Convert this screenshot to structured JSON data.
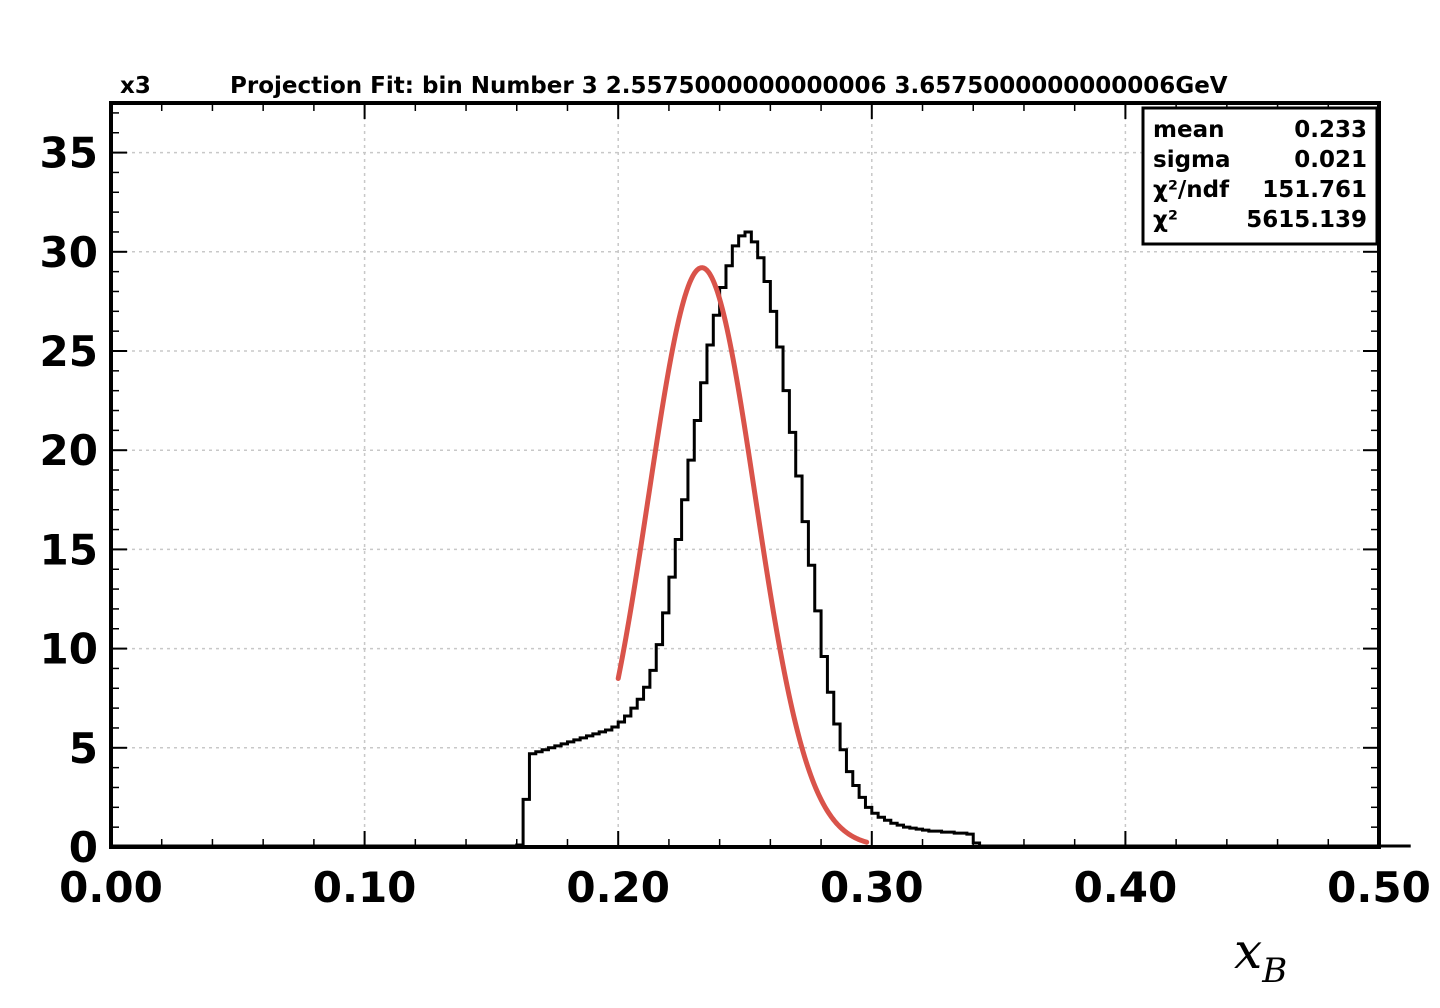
{
  "chart_data": {
    "type": "histogram",
    "corner_label": "x3",
    "title": "Projection Fit: bin Number 3 2.5575000000000006 3.6575000000000006GeV",
    "xlabel": "x",
    "xlabel_subscript": "B",
    "ylabel": "",
    "xlim": [
      0.0,
      0.5
    ],
    "ylim": [
      0,
      37.5
    ],
    "x_ticks": [
      0.0,
      0.1,
      0.2,
      0.3,
      0.4,
      0.5
    ],
    "x_tick_labels": [
      "0.00",
      "0.10",
      "0.20",
      "0.30",
      "0.40",
      "0.50"
    ],
    "y_ticks": [
      0,
      5,
      10,
      15,
      20,
      25,
      30,
      35
    ],
    "y_tick_labels": [
      "0",
      "5",
      "10",
      "15",
      "20",
      "25",
      "30",
      "35"
    ],
    "grid": true,
    "series": [
      {
        "kind": "histogram",
        "color": "#000000",
        "bin_width": 0.0025,
        "bin_edges_start": 0.0,
        "values": [
          0.05,
          0.05,
          0.05,
          0.05,
          0.05,
          0.05,
          0.05,
          0.05,
          0.05,
          0.05,
          0.05,
          0.05,
          0.05,
          0.05,
          0.05,
          0.05,
          0.05,
          0.05,
          0.05,
          0.05,
          0.05,
          0.05,
          0.05,
          0.05,
          0.05,
          0.05,
          0.05,
          0.05,
          0.05,
          0.05,
          0.05,
          0.05,
          0.05,
          0.05,
          0.05,
          0.05,
          0.05,
          0.05,
          0.05,
          0.05,
          0.05,
          0.05,
          0.05,
          0.05,
          0.05,
          0.05,
          0.05,
          0.05,
          0.05,
          0.05,
          0.05,
          0.05,
          0.05,
          0.05,
          0.05,
          0.05,
          0.05,
          0.05,
          0.05,
          0.05,
          0.05,
          0.05,
          0.05,
          0.05,
          0.1,
          2.4,
          4.7,
          4.8,
          4.9,
          5.0,
          5.1,
          5.2,
          5.3,
          5.4,
          5.5,
          5.6,
          5.7,
          5.8,
          5.9,
          6.05,
          6.3,
          6.6,
          7.0,
          7.45,
          8.05,
          8.9,
          10.2,
          11.8,
          13.6,
          15.5,
          17.5,
          19.5,
          21.5,
          23.4,
          25.3,
          26.8,
          28.2,
          29.3,
          30.3,
          30.8,
          31.0,
          30.5,
          29.7,
          28.5,
          27.0,
          25.2,
          23.0,
          20.9,
          18.7,
          16.4,
          14.2,
          11.9,
          9.6,
          7.8,
          6.2,
          4.9,
          3.8,
          3.1,
          2.5,
          2.0,
          1.7,
          1.5,
          1.35,
          1.2,
          1.1,
          1.0,
          0.95,
          0.9,
          0.85,
          0.8,
          0.8,
          0.75,
          0.75,
          0.7,
          0.7,
          0.65,
          0.2,
          0.05,
          0.05,
          0.05,
          0.05,
          0.05,
          0.05,
          0.05,
          0.05,
          0.05,
          0.05,
          0.05,
          0.05,
          0.05,
          0.05,
          0.05,
          0.05,
          0.05,
          0.05,
          0.05,
          0.05,
          0.05,
          0.05,
          0.05,
          0.05,
          0.05,
          0.05,
          0.05,
          0.05,
          0.05,
          0.05,
          0.05,
          0.05,
          0.05,
          0.05,
          0.05,
          0.05,
          0.05,
          0.05,
          0.05,
          0.05,
          0.05,
          0.05,
          0.05,
          0.05,
          0.05,
          0.05,
          0.05,
          0.05,
          0.05,
          0.05,
          0.05,
          0.05,
          0.05,
          0.05,
          0.05,
          0.05,
          0.05,
          0.05,
          0.05,
          0.05,
          0.05,
          0.05,
          0.05,
          0.05,
          0.05,
          0.05,
          0.05,
          0.05
        ]
      },
      {
        "kind": "fit",
        "function": "gaussian",
        "color": "#d9534a",
        "amplitude": 29.2,
        "mean": 0.233,
        "sigma": 0.021,
        "x_range": [
          0.2,
          0.298
        ]
      }
    ],
    "stats_box": {
      "position": "top-right",
      "rows": [
        {
          "label": "mean",
          "value": "0.233"
        },
        {
          "label": "sigma",
          "value": "0.021"
        },
        {
          "label": "χ²/ndf",
          "value": "151.761"
        },
        {
          "label": "χ²",
          "value": "5615.139"
        }
      ]
    }
  }
}
